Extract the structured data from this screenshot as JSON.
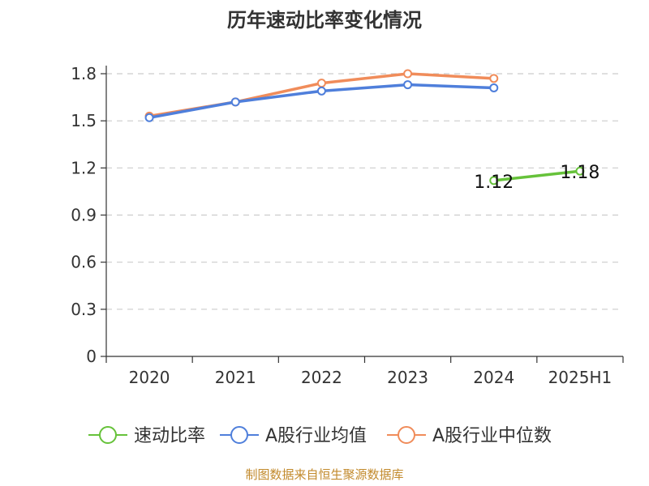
{
  "chart_data": {
    "type": "line",
    "title": "历年速动比率变化情况",
    "categories": [
      "2020",
      "2021",
      "2022",
      "2023",
      "2024",
      "2025H1"
    ],
    "ylim": [
      0,
      1.8
    ],
    "yticks": [
      "0",
      "0.3",
      "0.6",
      "0.9",
      "1.2",
      "1.5",
      "1.8"
    ],
    "grid": true,
    "legend_position": "bottom",
    "series": [
      {
        "name": "速动比率",
        "color": "#66c23a",
        "values": [
          null,
          null,
          null,
          null,
          1.12,
          1.18
        ],
        "labels": [
          "",
          "",
          "",
          "",
          "1.12",
          "1.18"
        ]
      },
      {
        "name": "A股行业均值",
        "color": "#4f7fdb",
        "values": [
          1.52,
          1.62,
          1.69,
          1.73,
          1.71,
          null
        ]
      },
      {
        "name": "A股行业中位数",
        "color": "#f08c5a",
        "values": [
          1.53,
          1.62,
          1.74,
          1.8,
          1.77,
          null
        ]
      }
    ],
    "source": "制图数据来自恒生聚源数据库"
  }
}
